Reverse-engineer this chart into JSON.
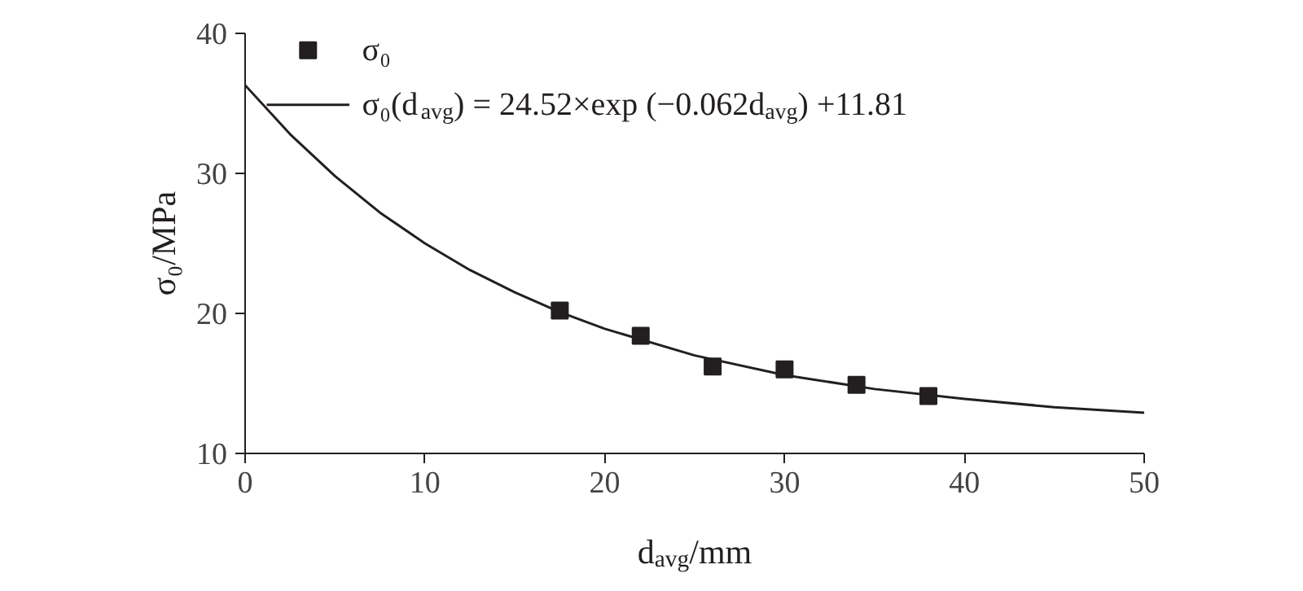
{
  "chart_data": {
    "type": "scatter",
    "xlabel": "d$_{avg}$/mm",
    "ylabel": "σ₀/MPa",
    "x": [
      17.5,
      22,
      26,
      30,
      34,
      38
    ],
    "series": [
      {
        "name": "σ₀",
        "color": "#231f20",
        "marker": "square",
        "values": [
          20.2,
          18.4,
          16.2,
          16.0,
          14.9,
          14.1
        ]
      },
      {
        "name": "σ₀(d$_{avg}$) = 24.52×exp (−0.062d$_{avg}$) +11.81",
        "color": "#231f20",
        "type": "line",
        "marker": "none",
        "line_style": "solid",
        "x": [
          0,
          2.5,
          5,
          7.5,
          10,
          12.5,
          15,
          17.5,
          20,
          25,
          30,
          35,
          40,
          45,
          50
        ],
        "values": [
          36.3,
          32.8,
          29.8,
          27.2,
          25.0,
          23.1,
          21.5,
          20.1,
          18.9,
          17.0,
          15.6,
          14.6,
          13.9,
          13.3,
          12.9
        ]
      }
    ],
    "xlim": [
      0,
      50
    ],
    "xticks": [
      0,
      10,
      20,
      30,
      40,
      50
    ],
    "ylim": [
      10,
      40
    ],
    "yticks": [
      10,
      20,
      30,
      40
    ],
    "grid": false,
    "legend": "top left"
  }
}
